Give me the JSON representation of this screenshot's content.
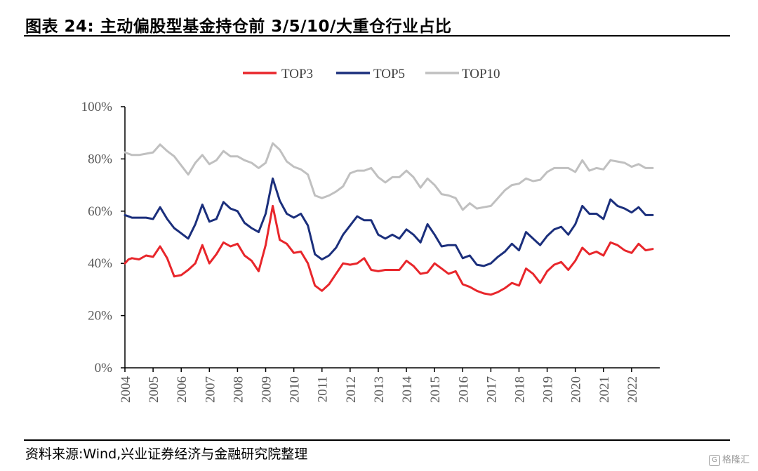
{
  "header": {
    "title": "图表 24:  主动偏股型基金持仓前 3/5/10/大重仓行业占比"
  },
  "footer": {
    "source": "资料来源:Wind,兴业证券经济与金融研究院整理",
    "watermark": "格隆汇",
    "watermark_icon": "G"
  },
  "chart_data": {
    "type": "line",
    "title": "",
    "xlabel": "",
    "ylabel": "",
    "ylim": [
      0,
      100
    ],
    "y_ticks": [
      "0%",
      "20%",
      "40%",
      "60%",
      "80%",
      "100%"
    ],
    "x_range": [
      2004.0,
      2023.0
    ],
    "x_ticks": [
      "2004",
      "2005",
      "2006",
      "2007",
      "2008",
      "2009",
      "2010",
      "2011",
      "2012",
      "2013",
      "2014",
      "2015",
      "2016",
      "2017",
      "2018",
      "2019",
      "2020",
      "2021",
      "2022"
    ],
    "grid": false,
    "legend_position": "top-center",
    "x": [
      2004.0,
      2004.125,
      2004.25,
      2004.5,
      2004.75,
      2005.0,
      2005.25,
      2005.5,
      2005.75,
      2006.0,
      2006.25,
      2006.5,
      2006.75,
      2007.0,
      2007.25,
      2007.5,
      2007.75,
      2008.0,
      2008.25,
      2008.5,
      2008.75,
      2009.0,
      2009.25,
      2009.5,
      2009.75,
      2010.0,
      2010.25,
      2010.5,
      2010.75,
      2011.0,
      2011.25,
      2011.5,
      2011.75,
      2012.0,
      2012.25,
      2012.5,
      2012.75,
      2013.0,
      2013.25,
      2013.5,
      2013.75,
      2014.0,
      2014.25,
      2014.5,
      2014.75,
      2015.0,
      2015.25,
      2015.5,
      2015.75,
      2016.0,
      2016.25,
      2016.5,
      2016.75,
      2017.0,
      2017.25,
      2017.5,
      2017.75,
      2018.0,
      2018.25,
      2018.5,
      2018.75,
      2019.0,
      2019.25,
      2019.5,
      2019.75,
      2020.0,
      2020.25,
      2020.5,
      2020.75,
      2021.0,
      2021.25,
      2021.5,
      2021.75,
      2022.0,
      2022.25,
      2022.5,
      2022.75
    ],
    "series": [
      {
        "name": "TOP3",
        "color": "#e8262b",
        "values": [
          40,
          41.5,
          42,
          41.5,
          43,
          42.5,
          46.5,
          42,
          35,
          35.5,
          37.5,
          40,
          47,
          40,
          43.5,
          48,
          46.5,
          47.5,
          43,
          41,
          37,
          47,
          62,
          49,
          47.5,
          44,
          44.5,
          40,
          31.5,
          29.5,
          32,
          36,
          40,
          39.5,
          40,
          42,
          37.5,
          37,
          37.5,
          37.5,
          37.5,
          41,
          39,
          36,
          36.5,
          40,
          38,
          36,
          37,
          32,
          31,
          29.5,
          28.5,
          28,
          29,
          30.5,
          32.5,
          31.5,
          38,
          36,
          32.5,
          37,
          39.5,
          40.5,
          37.5,
          41,
          46,
          43.5,
          44.5,
          43,
          48,
          47,
          45,
          44,
          47.5,
          45,
          45.5
        ]
      },
      {
        "name": "TOP5",
        "color": "#1b2f7c",
        "values": [
          58.5,
          58,
          57.5,
          57.5,
          57.5,
          57,
          61.5,
          57,
          53.5,
          51.5,
          49.5,
          55,
          62.5,
          56,
          57,
          63.5,
          61,
          60,
          55.5,
          53.5,
          52,
          59,
          72.5,
          64,
          59,
          57.5,
          59,
          54.5,
          43.5,
          41.5,
          43,
          46,
          51,
          54.5,
          58,
          56.5,
          56.5,
          51,
          49.5,
          51,
          49.5,
          53,
          51,
          48,
          55,
          51,
          46.5,
          47,
          47,
          42,
          43,
          39.5,
          39,
          40,
          42.5,
          44.5,
          47.5,
          45,
          52,
          49.5,
          47,
          50.5,
          53,
          54,
          51,
          55,
          62,
          59,
          59,
          57,
          64.5,
          62,
          61,
          59.5,
          61.5,
          58.5,
          58.5
        ]
      },
      {
        "name": "TOP10",
        "color": "#c0c0c0",
        "values": [
          82.5,
          82,
          81.5,
          81.5,
          82,
          82.5,
          85.5,
          83,
          81,
          77.5,
          74,
          78.5,
          81.5,
          78,
          79.5,
          83,
          81,
          81,
          79.5,
          78.5,
          76.5,
          78.5,
          86,
          83.5,
          79,
          77,
          76,
          74,
          66,
          65,
          66,
          67.5,
          69.5,
          74.5,
          75.5,
          75.5,
          76.5,
          73,
          71,
          73,
          73,
          75.5,
          73,
          69,
          72.5,
          70,
          66.5,
          66,
          65,
          60.5,
          63,
          61,
          61.5,
          62,
          65,
          68,
          70,
          70.5,
          72.5,
          71.5,
          72,
          75,
          76.5,
          76.5,
          76.5,
          75,
          79.5,
          75.5,
          76.5,
          76,
          79.5,
          79,
          78.5,
          77,
          78,
          76.5,
          76.5
        ]
      }
    ]
  }
}
